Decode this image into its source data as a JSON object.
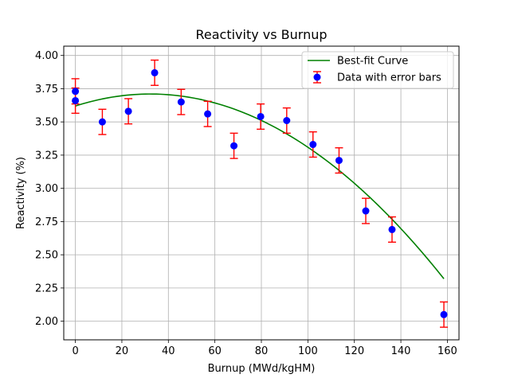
{
  "chart_data": {
    "type": "scatter",
    "title": "Reactivity vs Burnup",
    "xlabel": "Burnup (MWd/kgHM)",
    "ylabel": "Reactivity (%)",
    "xlim": [
      -5,
      165
    ],
    "ylim": [
      1.86,
      4.07
    ],
    "xticks": [
      0,
      20,
      40,
      60,
      80,
      100,
      120,
      140,
      160
    ],
    "yticks": [
      2.0,
      2.25,
      2.5,
      2.75,
      3.0,
      3.25,
      3.5,
      3.75,
      4.0
    ],
    "xtick_labels": [
      "0",
      "20",
      "40",
      "60",
      "80",
      "100",
      "120",
      "140",
      "160"
    ],
    "ytick_labels": [
      "2.00",
      "2.25",
      "2.50",
      "2.75",
      "3.00",
      "3.25",
      "3.50",
      "3.75",
      "4.00"
    ],
    "grid": true,
    "legend_position": "top-right",
    "series": [
      {
        "name": "Data with error bars",
        "kind": "errorbar",
        "x": [
          0,
          0,
          11.6,
          22.8,
          34.1,
          45.5,
          56.9,
          68.2,
          79.7,
          90.9,
          102.2,
          113.4,
          124.9,
          136.2,
          158.5
        ],
        "y": [
          3.73,
          3.66,
          3.5,
          3.58,
          3.87,
          3.65,
          3.56,
          3.32,
          3.54,
          3.51,
          3.33,
          3.21,
          2.83,
          2.69,
          2.05
        ],
        "yerr": 0.095,
        "color": "#0000ff",
        "errcolor": "#ff0000"
      },
      {
        "name": "Best-fit Curve",
        "kind": "line",
        "fit": {
          "a": -8.72e-05,
          "b": 0.005619,
          "c": 3.6194
        },
        "x_range": [
          0,
          158.5
        ],
        "color": "#008000"
      }
    ]
  }
}
